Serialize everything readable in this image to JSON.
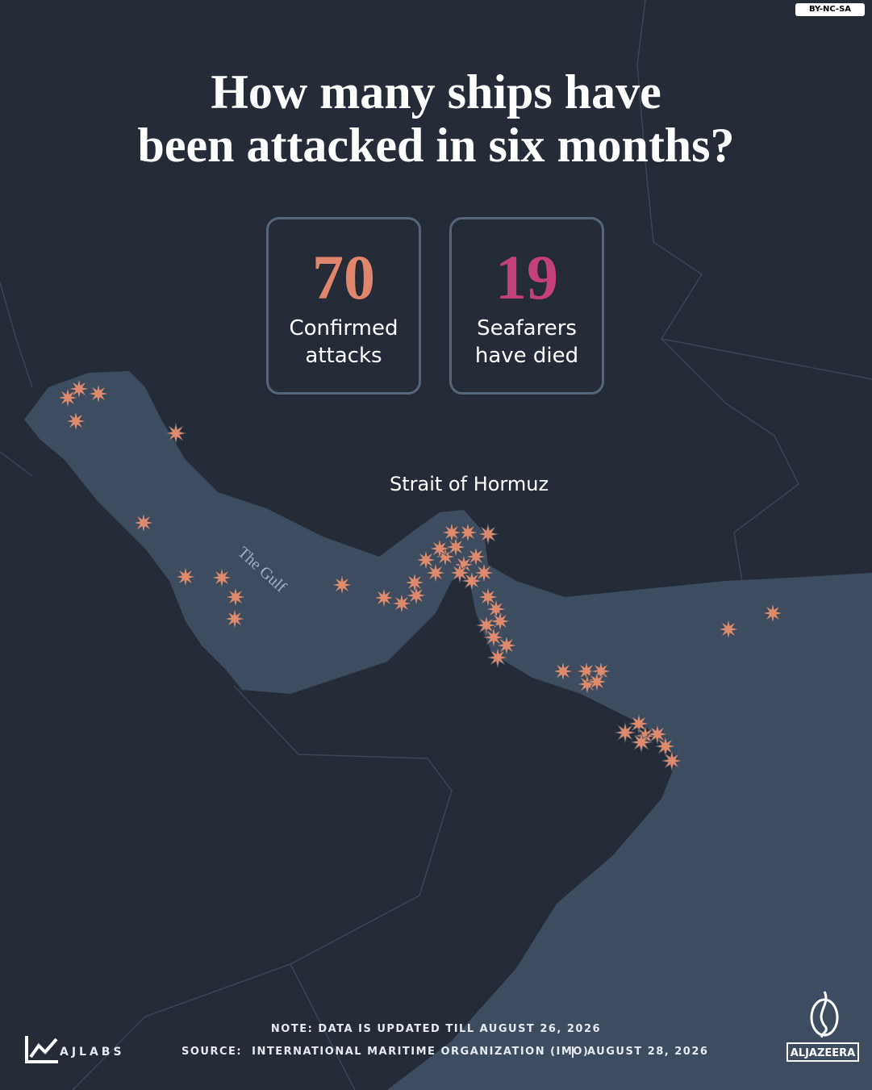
{
  "header": {
    "badge": "BY-NC-SA",
    "title_lines": [
      "How many ships have",
      "been attacked in six months?"
    ]
  },
  "stats": [
    {
      "value": 70,
      "label": "Confirmed attacks",
      "color": "#e0866c"
    },
    {
      "value": 19,
      "label": "Seafarers have died",
      "color": "#c4407a"
    }
  ],
  "map": {
    "labels": [
      "Strait of Hormuz",
      "The Gulf"
    ]
  },
  "footer": {
    "note": "NOTE: DATA IS UPDATED TILL AUGUST 26, 2026",
    "source": "SOURCE:  INTERNATIONAL MARITIME ORGANIZATION (IMO)",
    "date": "AUGUST 28, 2026",
    "brand_left": "AJLABS",
    "brand_right": "ALJAZEERA"
  }
}
